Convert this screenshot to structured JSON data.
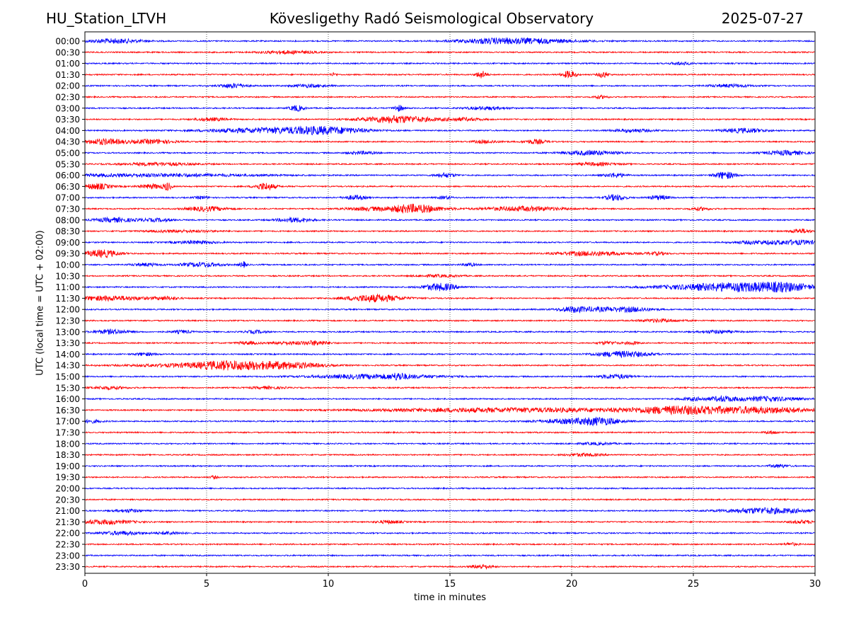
{
  "header": {
    "station": "HU_Station_LTVH",
    "title": "Kövesligethy Radó Seismological Observatory",
    "date": "2025-07-27"
  },
  "chart_data": {
    "type": "line",
    "title": "Kövesligethy Radó Seismological Observatory",
    "xlabel": "time in minutes",
    "ylabel": "UTC (local time = UTC + 02:00)",
    "xlim": [
      0,
      30
    ],
    "x_ticks": [
      "0",
      "5",
      "10",
      "15",
      "20",
      "25",
      "30"
    ],
    "grid": "vertical dotted lines at 5-minute intervals",
    "colors": {
      "even_row": "#0000ff",
      "odd_row": "#ff0000",
      "axis": "#000000"
    },
    "rows": [
      {
        "label": "00:00",
        "bursts": [
          [
            1.2,
            0.8,
            3
          ],
          [
            18.2,
            1.5,
            3
          ],
          [
            16.5,
            1.0,
            2
          ]
        ]
      },
      {
        "label": "00:30",
        "bursts": [
          [
            8.3,
            0.8,
            2
          ]
        ]
      },
      {
        "label": "01:00",
        "bursts": [
          [
            24.5,
            0.3,
            2
          ]
        ]
      },
      {
        "label": "01:30",
        "bursts": [
          [
            16.3,
            0.15,
            5
          ],
          [
            19.9,
            0.2,
            5
          ],
          [
            21.3,
            0.15,
            4
          ],
          [
            10.2,
            0.1,
            2
          ]
        ]
      },
      {
        "label": "02:00",
        "bursts": [
          [
            6.1,
            0.4,
            3
          ],
          [
            9.2,
            0.5,
            2
          ],
          [
            26.5,
            0.6,
            2
          ]
        ]
      },
      {
        "label": "02:30",
        "bursts": [
          [
            21.2,
            0.2,
            2
          ]
        ]
      },
      {
        "label": "03:00",
        "bursts": [
          [
            8.7,
            0.2,
            4
          ],
          [
            12.9,
            0.15,
            4
          ],
          [
            16.5,
            0.6,
            2
          ]
        ]
      },
      {
        "label": "03:30",
        "bursts": [
          [
            12.8,
            1.0,
            5
          ],
          [
            5.2,
            0.5,
            2
          ],
          [
            15.5,
            0.6,
            2
          ]
        ]
      },
      {
        "label": "04:00",
        "bursts": [
          [
            9.8,
            1.2,
            5
          ],
          [
            7.0,
            1.5,
            3
          ],
          [
            27.1,
            0.6,
            3
          ],
          [
            22.5,
            0.6,
            2
          ]
        ]
      },
      {
        "label": "04:30",
        "bursts": [
          [
            0.8,
            0.6,
            4
          ],
          [
            2.8,
            0.6,
            3
          ],
          [
            18.5,
            0.3,
            3
          ],
          [
            16.5,
            0.4,
            2
          ]
        ]
      },
      {
        "label": "05:00",
        "bursts": [
          [
            20.8,
            0.8,
            3
          ],
          [
            28.8,
            0.6,
            3
          ],
          [
            11.4,
            0.4,
            2
          ]
        ]
      },
      {
        "label": "05:30",
        "bursts": [
          [
            3.0,
            1.0,
            2
          ],
          [
            21.0,
            0.6,
            2
          ]
        ]
      },
      {
        "label": "06:00",
        "bursts": [
          [
            26.3,
            0.3,
            5
          ],
          [
            21.8,
            0.3,
            3
          ],
          [
            14.8,
            0.3,
            3
          ],
          [
            3.0,
            3.0,
            2
          ]
        ]
      },
      {
        "label": "06:30",
        "bursts": [
          [
            0.5,
            0.4,
            4
          ],
          [
            3.4,
            0.1,
            5
          ],
          [
            7.4,
            0.3,
            5
          ],
          [
            2.8,
            0.4,
            3
          ]
        ]
      },
      {
        "label": "07:00",
        "bursts": [
          [
            21.8,
            0.3,
            4
          ],
          [
            11.1,
            0.3,
            3
          ],
          [
            23.6,
            0.3,
            3
          ],
          [
            14.8,
            0.2,
            2
          ],
          [
            4.8,
            0.2,
            2
          ]
        ]
      },
      {
        "label": "07:30",
        "bursts": [
          [
            13.5,
            0.8,
            6
          ],
          [
            18.0,
            1.2,
            3
          ],
          [
            5.0,
            0.6,
            3
          ],
          [
            11.5,
            0.6,
            2
          ],
          [
            25.3,
            0.3,
            2
          ]
        ]
      },
      {
        "label": "08:00",
        "bursts": [
          [
            1.2,
            0.6,
            3
          ],
          [
            3.0,
            0.5,
            2
          ],
          [
            8.6,
            0.5,
            3
          ]
        ]
      },
      {
        "label": "08:30",
        "bursts": [
          [
            29.4,
            0.3,
            3
          ],
          [
            4.0,
            1.0,
            1.5
          ]
        ]
      },
      {
        "label": "09:00",
        "bursts": [
          [
            4.5,
            0.6,
            2
          ],
          [
            29.2,
            0.8,
            3
          ],
          [
            27.5,
            0.6,
            2
          ]
        ]
      },
      {
        "label": "09:30",
        "bursts": [
          [
            0.7,
            0.5,
            5
          ],
          [
            20.8,
            1.0,
            3
          ],
          [
            23.5,
            0.3,
            2
          ]
        ]
      },
      {
        "label": "10:00",
        "bursts": [
          [
            4.8,
            0.6,
            3
          ],
          [
            6.5,
            0.1,
            4
          ],
          [
            15.8,
            0.2,
            2
          ],
          [
            2.5,
            0.4,
            2
          ]
        ]
      },
      {
        "label": "10:30",
        "bursts": [
          [
            14.5,
            0.6,
            1.5
          ]
        ]
      },
      {
        "label": "11:00",
        "bursts": [
          [
            14.6,
            0.5,
            5
          ],
          [
            27.0,
            1.5,
            5
          ],
          [
            28.8,
            0.8,
            4
          ],
          [
            25.0,
            1.5,
            2
          ]
        ]
      },
      {
        "label": "11:30",
        "bursts": [
          [
            11.9,
            0.8,
            5
          ],
          [
            1.0,
            1.2,
            3
          ],
          [
            3.4,
            0.3,
            2
          ]
        ]
      },
      {
        "label": "12:00",
        "bursts": [
          [
            20.7,
            0.8,
            3
          ],
          [
            22.5,
            0.6,
            3
          ],
          [
            20.0,
            0.3,
            2
          ]
        ]
      },
      {
        "label": "12:30",
        "bursts": [
          [
            23.6,
            0.6,
            2
          ]
        ]
      },
      {
        "label": "13:00",
        "bursts": [
          [
            1.1,
            0.5,
            3
          ],
          [
            4.0,
            0.3,
            2
          ],
          [
            7.0,
            0.3,
            2
          ],
          [
            26.0,
            0.5,
            2
          ]
        ]
      },
      {
        "label": "13:30",
        "bursts": [
          [
            9.5,
            0.4,
            3
          ],
          [
            8.3,
            0.5,
            2
          ],
          [
            21.5,
            0.3,
            2
          ],
          [
            22.5,
            0.2,
            2
          ],
          [
            6.7,
            0.3,
            2
          ]
        ]
      },
      {
        "label": "14:00",
        "bursts": [
          [
            22.1,
            0.8,
            4
          ],
          [
            2.5,
            0.3,
            2
          ]
        ]
      },
      {
        "label": "14:30",
        "bursts": [
          [
            6.0,
            1.0,
            4
          ],
          [
            8.3,
            1.0,
            4
          ],
          [
            5.0,
            2.0,
            2.5
          ]
        ]
      },
      {
        "label": "15:00",
        "bursts": [
          [
            12.0,
            1.8,
            3
          ],
          [
            12.9,
            0.2,
            3
          ],
          [
            21.8,
            0.5,
            3
          ]
        ]
      },
      {
        "label": "15:30",
        "bursts": [
          [
            1.0,
            0.5,
            2
          ],
          [
            7.5,
            0.5,
            1.5
          ]
        ]
      },
      {
        "label": "16:00",
        "bursts": [
          [
            26.2,
            0.4,
            3
          ],
          [
            28.0,
            1.0,
            3
          ],
          [
            25.0,
            0.4,
            2
          ]
        ]
      },
      {
        "label": "16:30",
        "bursts": [
          [
            24.5,
            1.5,
            5
          ],
          [
            28.0,
            1.5,
            4
          ],
          [
            19.0,
            3.0,
            2
          ],
          [
            15.0,
            3.0,
            1.5
          ]
        ]
      },
      {
        "label": "17:00",
        "bursts": [
          [
            21.2,
            0.6,
            4
          ],
          [
            20.0,
            1.0,
            3
          ],
          [
            0.3,
            0.3,
            2
          ]
        ]
      },
      {
        "label": "17:30",
        "bursts": [
          [
            28.2,
            0.2,
            2
          ]
        ]
      },
      {
        "label": "18:00",
        "bursts": [
          [
            21.0,
            0.5,
            1.5
          ]
        ]
      },
      {
        "label": "18:30",
        "bursts": [
          [
            20.5,
            0.5,
            2
          ]
        ]
      },
      {
        "label": "19:00",
        "bursts": [
          [
            28.5,
            0.3,
            2
          ]
        ]
      },
      {
        "label": "19:30",
        "bursts": [
          [
            5.3,
            0.1,
            2
          ]
        ]
      },
      {
        "label": "20:00",
        "bursts": []
      },
      {
        "label": "20:30",
        "bursts": []
      },
      {
        "label": "21:00",
        "bursts": [
          [
            28.0,
            1.2,
            4
          ],
          [
            1.8,
            0.4,
            2
          ]
        ]
      },
      {
        "label": "21:30",
        "bursts": [
          [
            0.8,
            0.8,
            3
          ],
          [
            12.5,
            0.4,
            2
          ],
          [
            29.5,
            0.4,
            2
          ]
        ]
      },
      {
        "label": "22:00",
        "bursts": [
          [
            1.5,
            0.6,
            2.5
          ],
          [
            3.5,
            0.4,
            2
          ]
        ]
      },
      {
        "label": "22:30",
        "bursts": [
          [
            29.0,
            0.2,
            2
          ]
        ]
      },
      {
        "label": "23:00",
        "bursts": []
      },
      {
        "label": "23:30",
        "bursts": [
          [
            16.3,
            0.3,
            3
          ]
        ]
      }
    ]
  }
}
